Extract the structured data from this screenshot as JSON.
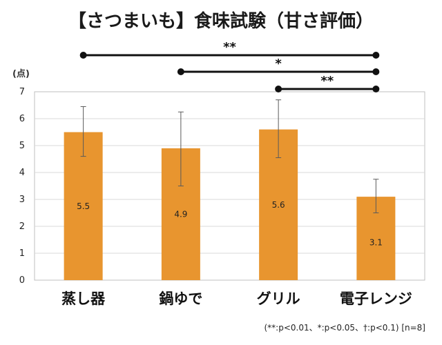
{
  "chart_data": {
    "type": "bar",
    "title": "【さつまいも】食味試験（甘さ評価）",
    "ylabel": "(点)",
    "ylim": [
      0,
      7
    ],
    "yticks": [
      "0",
      "1",
      "2",
      "3",
      "4",
      "5",
      "6",
      "7"
    ],
    "categories": [
      "蒸し器",
      "鍋ゆで",
      "グリル",
      "電子レンジ"
    ],
    "values": [
      5.5,
      4.9,
      5.6,
      3.1
    ],
    "value_labels": [
      "5.5",
      "4.9",
      "5.6",
      "3.1"
    ],
    "errors": [
      {
        "low": 4.6,
        "high": 6.45
      },
      {
        "low": 3.5,
        "high": 6.25
      },
      {
        "low": 4.55,
        "high": 6.7
      },
      {
        "low": 2.5,
        "high": 3.75
      }
    ],
    "significance": [
      {
        "from": 0,
        "to": 3,
        "label": "**"
      },
      {
        "from": 1,
        "to": 3,
        "label": "*"
      },
      {
        "from": 2,
        "to": 3,
        "label": "**"
      }
    ],
    "bar_color": "#E8952F",
    "grid": true,
    "footnote": "(**:p<0.01、*:p<0.05、†:p<0.1) [n=8]"
  }
}
